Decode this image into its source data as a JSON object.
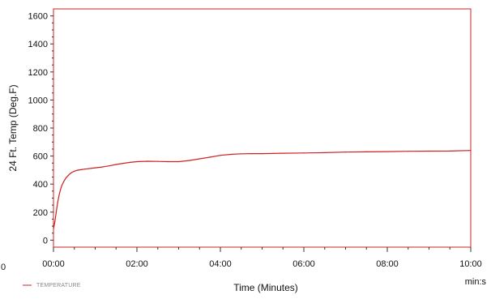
{
  "chart_data": {
    "type": "line",
    "title": "",
    "xlabel": "Time (Minutes)",
    "x_unit_label": "min:s",
    "ylabel": "24 Ft. Temp (Deg.F)",
    "xlim": [
      0,
      600
    ],
    "ylim": [
      -50,
      1650
    ],
    "x_ticks": [
      0,
      120,
      240,
      360,
      480,
      600
    ],
    "x_tick_labels": [
      "00:00",
      "02:00",
      "04:00",
      "06:00",
      "08:00",
      "10:00"
    ],
    "y_ticks": [
      0,
      200,
      400,
      600,
      800,
      1000,
      1200,
      1400,
      1600
    ],
    "y_tick_labels": [
      "0",
      "200",
      "400",
      "600",
      "800",
      "1000",
      "1200",
      "1400",
      "1600"
    ],
    "stray_left_label": "0",
    "grid": false,
    "legend_position": "bottom-left",
    "colors": {
      "series": "#cc2222",
      "frame": "#cc2222"
    },
    "series": [
      {
        "name": "TEMPERATURE",
        "x": [
          0,
          2,
          4,
          6,
          8,
          10,
          12,
          15,
          18,
          21,
          24,
          27,
          30,
          33,
          36,
          40,
          45,
          50,
          55,
          60,
          70,
          80,
          90,
          100,
          110,
          120,
          135,
          150,
          165,
          180,
          195,
          210,
          225,
          240,
          255,
          270,
          285,
          300,
          330,
          360,
          390,
          420,
          450,
          480,
          510,
          540,
          570,
          600
        ],
        "y": [
          80,
          130,
          200,
          270,
          320,
          360,
          390,
          420,
          445,
          460,
          475,
          485,
          492,
          497,
          500,
          503,
          507,
          510,
          513,
          516,
          522,
          530,
          540,
          548,
          555,
          560,
          563,
          562,
          560,
          560,
          568,
          580,
          592,
          605,
          612,
          616,
          617,
          617,
          620,
          622,
          624,
          628,
          630,
          632,
          634,
          635,
          636,
          640
        ]
      }
    ]
  }
}
